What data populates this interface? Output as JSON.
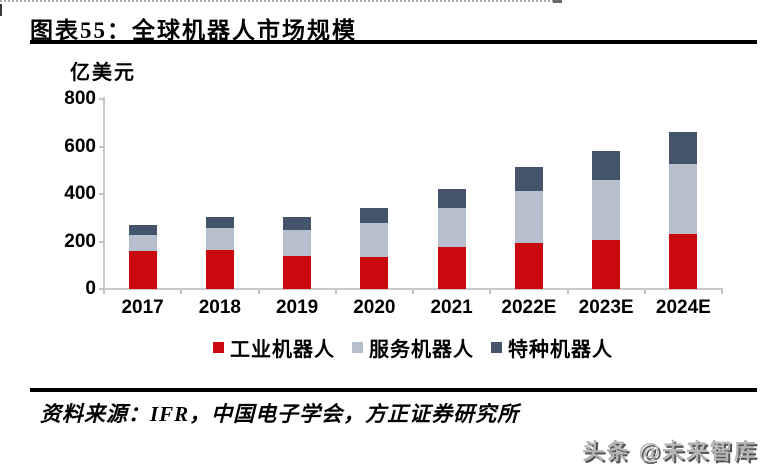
{
  "header": {
    "title": "图表55：全球机器人市场规模"
  },
  "chart_data": {
    "type": "bar",
    "stacked": true,
    "title": "全球机器人市场规模",
    "unit_label": "亿美元",
    "xlabel": "",
    "ylabel": "亿美元",
    "ylim": [
      0,
      800
    ],
    "yticks": [
      0,
      200,
      400,
      600,
      800
    ],
    "grid": false,
    "legend_position": "bottom",
    "categories": [
      "2017",
      "2018",
      "2019",
      "2020",
      "2021",
      "2022E",
      "2023E",
      "2024E"
    ],
    "series": [
      {
        "name": "工业机器人",
        "color": "#c9090d",
        "values": [
          162,
          165,
          138,
          136,
          175,
          195,
          205,
          230
        ]
      },
      {
        "name": "服务机器人",
        "color": "#b6bfce",
        "values": [
          66,
          90,
          110,
          140,
          165,
          217,
          255,
          295
        ]
      },
      {
        "name": "特种机器人",
        "color": "#44546a",
        "values": [
          42,
          50,
          55,
          66,
          82,
          100,
          123,
          135
        ]
      }
    ],
    "totals": [
      270,
      305,
      303,
      342,
      422,
      512,
      583,
      660
    ]
  },
  "footer": {
    "source": "资料来源：IFR，中国电子学会，方正证券研究所",
    "watermark": "头条 @未来智库"
  }
}
